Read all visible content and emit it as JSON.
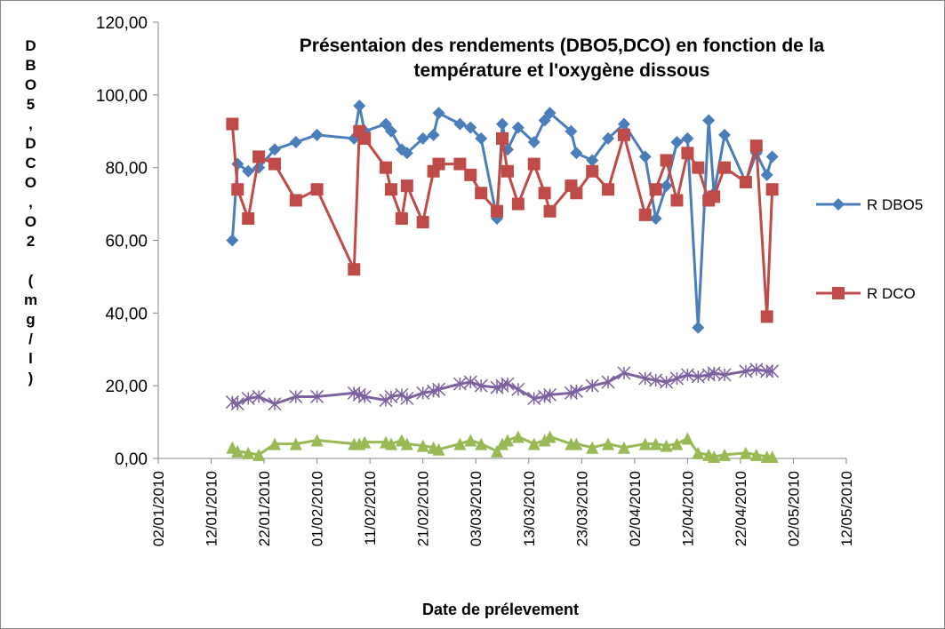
{
  "chart_data": {
    "type": "line",
    "title": [
      "Présentaion des rendements (DBO5,DCO) en fonction de la",
      "température et l'oxygène dissous"
    ],
    "x_label": "Date de prélevement",
    "y_label": "DBO5,DCO,O2 (mg/l)",
    "legend": "right",
    "x": [
      "16/01/2010",
      "17/01/2010",
      "19/01/2010",
      "21/01/2010",
      "24/01/2010",
      "28/01/2010",
      "01/02/2010",
      "08/02/2010",
      "09/02/2010",
      "10/02/2010",
      "14/02/2010",
      "15/02/2010",
      "17/02/2010",
      "18/02/2010",
      "21/02/2010",
      "23/02/2010",
      "24/02/2010",
      "28/02/2010",
      "02/03/2010",
      "04/03/2010",
      "07/03/2010",
      "08/03/2010",
      "09/03/2010",
      "11/03/2010",
      "14/03/2010",
      "16/03/2010",
      "17/03/2010",
      "21/03/2010",
      "22/03/2010",
      "25/03/2010",
      "28/03/2010",
      "31/03/2010",
      "04/04/2010",
      "06/04/2010",
      "08/04/2010",
      "10/04/2010",
      "12/04/2010",
      "14/04/2010",
      "16/04/2010",
      "17/04/2010",
      "19/04/2010",
      "23/04/2010",
      "25/04/2010",
      "27/04/2010",
      "28/04/2010"
    ],
    "series": [
      {
        "name": "R DBO5",
        "color": "#4a7ebb",
        "marker": "diamond",
        "values": [
          60,
          81,
          79,
          80,
          85,
          87,
          89,
          88,
          97,
          90,
          92,
          90,
          85,
          84,
          88,
          89,
          95,
          92,
          91,
          88,
          66,
          92,
          85,
          91,
          87,
          93,
          95,
          90,
          84,
          82,
          88,
          92,
          83,
          66,
          75,
          87,
          88,
          36,
          93,
          73,
          89,
          76,
          84,
          78,
          83
        ]
      },
      {
        "name": "R DCO",
        "color": "#be4b48",
        "marker": "square",
        "values": [
          92,
          74,
          66,
          83,
          81,
          71,
          74,
          52,
          90,
          88,
          80,
          74,
          66,
          75,
          65,
          79,
          81,
          81,
          78,
          73,
          68,
          88,
          79,
          70,
          81,
          73,
          68,
          75,
          73,
          79,
          74,
          89,
          67,
          74,
          82,
          71,
          84,
          80,
          71,
          72,
          80,
          76,
          86,
          39,
          74
        ]
      },
      {
        "color": "#7d60a0",
        "marker": "cross",
        "values": [
          15.5,
          15,
          16.5,
          17,
          15,
          17,
          17,
          18,
          17.5,
          17,
          16,
          17,
          17.5,
          16.5,
          18,
          18.5,
          19,
          20.5,
          21,
          20,
          19.5,
          20,
          20.5,
          19,
          16.5,
          17,
          17.5,
          18,
          18.5,
          20,
          21,
          23.5,
          22,
          21.5,
          21,
          22,
          23,
          22.5,
          23,
          23.5,
          23,
          24,
          24.5,
          24,
          24
        ]
      },
      {
        "color": "#98b954",
        "marker": "triangle",
        "values": [
          3,
          2,
          1.5,
          1,
          4,
          4,
          5,
          4,
          4,
          4.5,
          4.5,
          4,
          5,
          4,
          3.5,
          3,
          2.5,
          4,
          5,
          4,
          2,
          4,
          5,
          6,
          4,
          5,
          6,
          4,
          4,
          3,
          4,
          3,
          4,
          4,
          3.5,
          4,
          5.5,
          1.5,
          1,
          0.5,
          1,
          1.5,
          1,
          0.5,
          0.5
        ]
      }
    ],
    "xlim": [
      "02/01/2010",
      "12/05/2010"
    ],
    "xticks": [
      "02/01/2010",
      "12/01/2010",
      "22/01/2010",
      "01/02/2010",
      "11/02/2010",
      "21/02/2010",
      "03/03/2010",
      "13/03/2010",
      "23/03/2010",
      "02/04/2010",
      "12/04/2010",
      "22/04/2010",
      "02/05/2010",
      "12/05/2010"
    ],
    "ylim": [
      0,
      120
    ],
    "yticks": [
      {
        "value": 0,
        "label": "0,00"
      },
      {
        "value": 20,
        "label": "20,00"
      },
      {
        "value": 40,
        "label": "40,00"
      },
      {
        "value": 60,
        "label": "60,00"
      },
      {
        "value": 80,
        "label": "80,00"
      },
      {
        "value": 100,
        "label": "100,00"
      },
      {
        "value": 120,
        "label": "120,00"
      }
    ],
    "grid": false
  }
}
